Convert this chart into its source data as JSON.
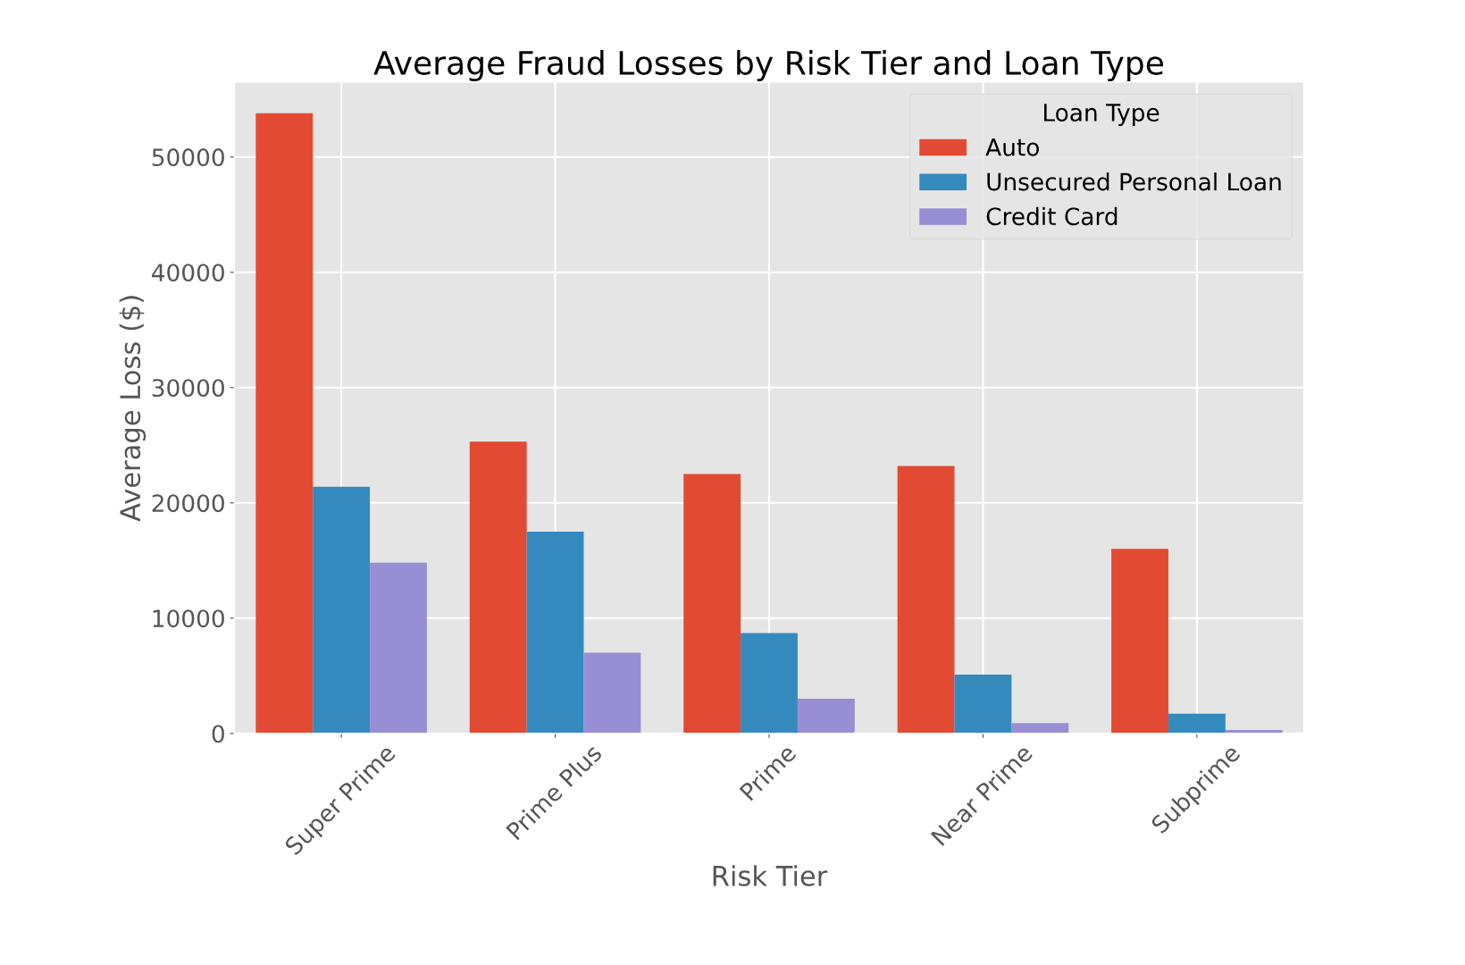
{
  "chart_data": {
    "type": "bar",
    "title": "Average Fraud Losses by Risk Tier and Loan Type",
    "xlabel": "Risk Tier",
    "ylabel": "Average Loss ($)",
    "legend_title": "Loan Type",
    "categories": [
      "Super Prime",
      "Prime Plus",
      "Prime",
      "Near Prime",
      "Subprime"
    ],
    "series": [
      {
        "name": "Auto",
        "color": "#e24a33",
        "values": [
          53800,
          25300,
          22500,
          23200,
          16000
        ]
      },
      {
        "name": "Unsecured Personal Loan",
        "color": "#348abd",
        "values": [
          21400,
          17500,
          8700,
          5100,
          1700
        ]
      },
      {
        "name": "Credit Card",
        "color": "#988ed5",
        "values": [
          14800,
          7000,
          3000,
          900,
          300
        ]
      }
    ],
    "ylim": [
      0,
      56500
    ],
    "yticks": [
      0,
      10000,
      20000,
      30000,
      40000,
      50000
    ],
    "grid": true,
    "legend": "top right"
  }
}
